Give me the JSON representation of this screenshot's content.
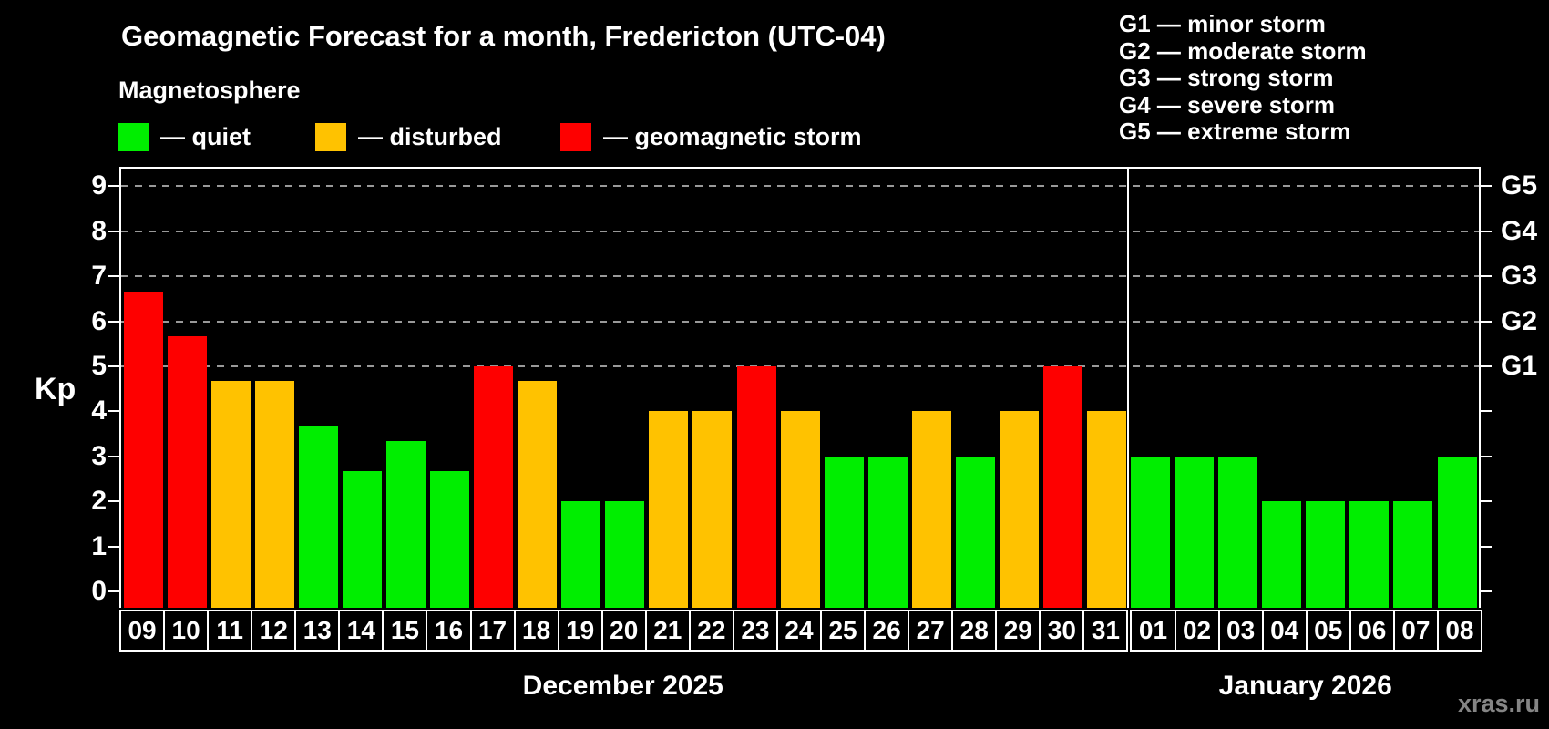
{
  "title": "Geomagnetic Forecast for a month, Fredericton (UTC-04)",
  "subtitle": "Magnetosphere",
  "legend": {
    "items": [
      {
        "key": "quiet",
        "label": "— quiet",
        "color": "#00ee00"
      },
      {
        "key": "disturbed",
        "label": "— disturbed",
        "color": "#ffc200"
      },
      {
        "key": "storm",
        "label": "— geomagnetic storm",
        "color": "#fe0000"
      }
    ]
  },
  "g_scale_legend": {
    "lines": [
      "G1 — minor storm",
      "G2 — moderate storm",
      "G3 — strong storm",
      "G4 — severe storm",
      "G5 — extreme storm"
    ]
  },
  "watermark": "xras.ru",
  "chart_data": {
    "type": "bar",
    "ylabel": "Kp",
    "ylim": [
      0,
      9
    ],
    "y_ticks": [
      0,
      1,
      2,
      3,
      4,
      5,
      6,
      7,
      8,
      9
    ],
    "right_axis_labels": [
      {
        "label": "G1",
        "value": 5
      },
      {
        "label": "G2",
        "value": 6
      },
      {
        "label": "G3",
        "value": 7
      },
      {
        "label": "G4",
        "value": 8
      },
      {
        "label": "G5",
        "value": 9
      }
    ],
    "gridlines_at": [
      5,
      6,
      7,
      8,
      9
    ],
    "grid_color": "#999999",
    "color_rules": {
      "disturbed_from": 4,
      "storm_from": 5
    },
    "colors": {
      "quiet": "#00ee00",
      "disturbed": "#ffc200",
      "storm": "#fe0000"
    },
    "months": [
      {
        "label": "December 2025",
        "days": [
          "09",
          "10",
          "11",
          "12",
          "13",
          "14",
          "15",
          "16",
          "17",
          "18",
          "19",
          "20",
          "21",
          "22",
          "23",
          "24",
          "25",
          "26",
          "27",
          "28",
          "29",
          "30",
          "31"
        ],
        "values": [
          6.67,
          5.67,
          4.67,
          4.67,
          3.67,
          2.67,
          3.33,
          2.67,
          5.0,
          4.67,
          2.0,
          2.0,
          4.0,
          4.0,
          5.0,
          4.0,
          3.0,
          3.0,
          4.0,
          3.0,
          4.0,
          5.0,
          4.0
        ]
      },
      {
        "label": "January 2026",
        "days": [
          "01",
          "02",
          "03",
          "04",
          "05",
          "06",
          "07",
          "08"
        ],
        "values": [
          3.0,
          3.0,
          3.0,
          2.0,
          2.0,
          2.0,
          2.0,
          3.0
        ]
      }
    ]
  }
}
